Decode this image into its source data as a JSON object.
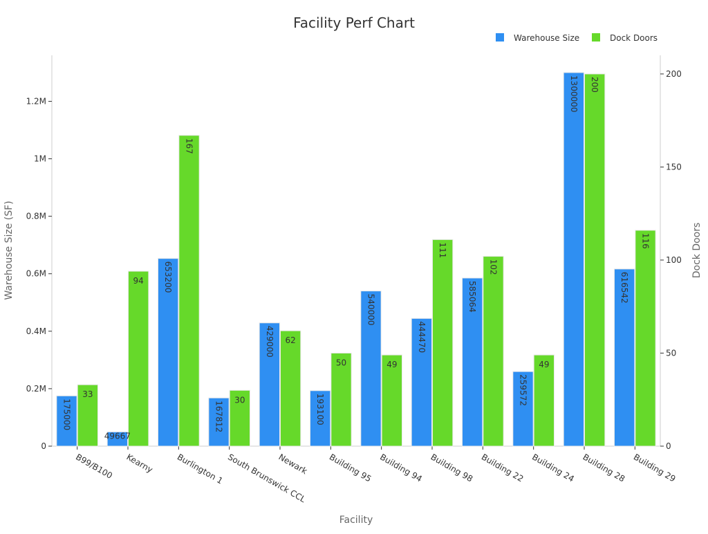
{
  "chart_data": {
    "type": "bar",
    "title": "Facility Perf Chart",
    "xlabel": "Facility",
    "ylabel": "Warehouse Size (SF)",
    "y2label": "Dock Doors",
    "categories": [
      "B99/B100",
      "Kearny",
      "Burlington 1",
      "South Brunswick CCL",
      "Newark",
      "Building 95",
      "Building 94",
      "Building 98",
      "Building 22",
      "Building 24",
      "Building 28",
      "Building 29"
    ],
    "series": [
      {
        "name": "Warehouse Size",
        "axis": "left",
        "color": "#2f8ff2",
        "values": [
          175000,
          49667,
          653200,
          167812,
          429000,
          193100,
          540000,
          444470,
          585064,
          259572,
          1300000,
          616542
        ]
      },
      {
        "name": "Dock Doors",
        "axis": "right",
        "color": "#66d92a",
        "values": [
          33,
          94,
          167,
          30,
          62,
          50,
          49,
          111,
          102,
          49,
          200,
          116
        ]
      }
    ],
    "ylim": [
      0,
      1360000
    ],
    "y2lim": [
      0,
      210
    ],
    "yticks": [
      0,
      200000,
      400000,
      600000,
      800000,
      1000000,
      1200000
    ],
    "ytick_labels": [
      "0",
      "0.2M",
      "0.4M",
      "0.6M",
      "0.8M",
      "1M",
      "1.2M"
    ],
    "y2ticks": [
      0,
      50,
      100,
      150,
      200
    ],
    "y2tick_labels": [
      "0",
      "50",
      "100",
      "150",
      "200"
    ],
    "legend_position": "top-right",
    "grid": false
  }
}
